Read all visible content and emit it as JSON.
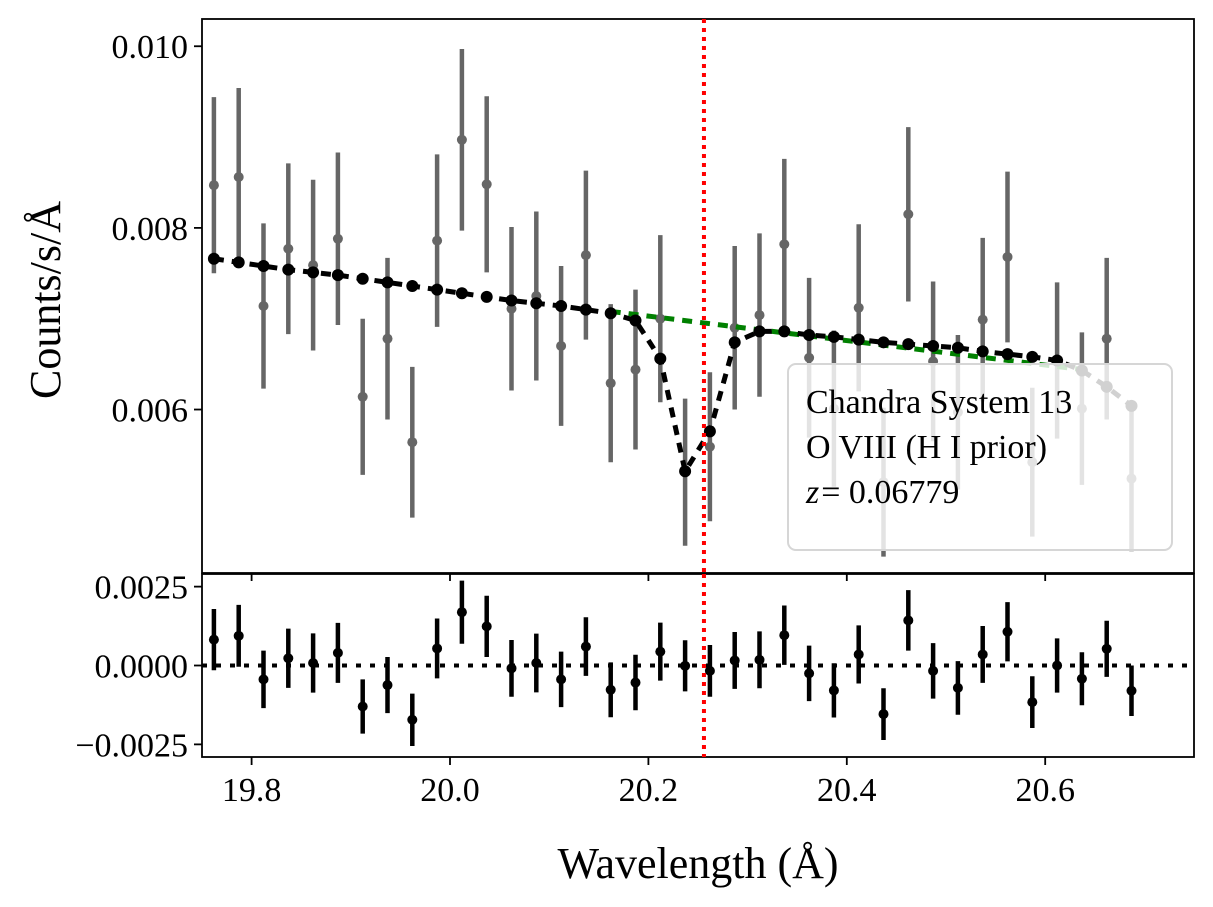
{
  "chart_data": {
    "type": "scatter",
    "xlabel": "Wavelength (Å)",
    "ylabel": "Counts/s/Å",
    "xlim": [
      19.75,
      20.75
    ],
    "x_ticks": [
      "19.8",
      "20.0",
      "20.2",
      "20.4",
      "20.6"
    ],
    "x_tick_values": [
      19.8,
      20.0,
      20.2,
      20.4,
      20.6
    ],
    "line_wavelength": 20.256,
    "colors": {
      "data": "#666666",
      "model": "#000000",
      "continuum": "#008000",
      "line_marker": "#ff0000",
      "residual": "#000000"
    },
    "panels": {
      "main": {
        "ylim": [
          0.0042,
          0.0103
        ],
        "y_ticks": [
          "0.006",
          "0.008",
          "0.010"
        ],
        "y_tick_values": [
          0.006,
          0.008,
          0.01
        ],
        "data": {
          "x": [
            19.762,
            19.787,
            19.812,
            19.837,
            19.862,
            19.887,
            19.912,
            19.937,
            19.962,
            19.987,
            20.012,
            20.037,
            20.062,
            20.087,
            20.112,
            20.137,
            20.162,
            20.187,
            20.212,
            20.237,
            20.262,
            20.287,
            20.312,
            20.337,
            20.362,
            20.387,
            20.412,
            20.437,
            20.462,
            20.487,
            20.512,
            20.537,
            20.562,
            20.587,
            20.612,
            20.637,
            20.662,
            20.687
          ],
          "y": [
            0.00847,
            0.00856,
            0.00714,
            0.00777,
            0.00759,
            0.00788,
            0.00614,
            0.00678,
            0.00564,
            0.00786,
            0.00897,
            0.00848,
            0.00711,
            0.00725,
            0.0067,
            0.0077,
            0.00629,
            0.00644,
            0.007,
            0.00531,
            0.00559,
            0.0069,
            0.00704,
            0.00782,
            0.00657,
            0.00601,
            0.00712,
            0.0052,
            0.00815,
            0.00653,
            0.00597,
            0.00699,
            0.00768,
            0.00542,
            0.00654,
            0.00601,
            0.00678,
            0.00524
          ],
          "yerr": [
            0.00097,
            0.00098,
            0.00091,
            0.00094,
            0.00094,
            0.00095,
            0.00086,
            0.00089,
            0.00083,
            0.00095,
            0.001,
            0.00097,
            0.0009,
            0.00093,
            0.00088,
            0.00093,
            0.00087,
            0.00088,
            0.00092,
            0.00081,
            0.00082,
            0.0009,
            0.0009,
            0.00094,
            0.00088,
            0.00086,
            0.00092,
            0.00082,
            0.00096,
            0.00088,
            0.00085,
            0.0009,
            0.00094,
            0.00082,
            0.00086,
            0.00084,
            0.00089,
            0.0008
          ]
        },
        "model": {
          "x": [
            19.762,
            19.787,
            19.812,
            19.837,
            19.862,
            19.887,
            19.912,
            19.937,
            19.962,
            19.987,
            20.012,
            20.037,
            20.062,
            20.087,
            20.112,
            20.137,
            20.162,
            20.187,
            20.212,
            20.237,
            20.262,
            20.287,
            20.312,
            20.337,
            20.362,
            20.387,
            20.412,
            20.437,
            20.462,
            20.487,
            20.512,
            20.537,
            20.562,
            20.587,
            20.612,
            20.637,
            20.662,
            20.687
          ],
          "y": [
            0.00766,
            0.00762,
            0.00758,
            0.00754,
            0.00751,
            0.00748,
            0.00744,
            0.0074,
            0.00736,
            0.00732,
            0.00728,
            0.00724,
            0.0072,
            0.00717,
            0.00714,
            0.0071,
            0.00706,
            0.00698,
            0.00656,
            0.00532,
            0.00576,
            0.00674,
            0.00686,
            0.00686,
            0.00682,
            0.0068,
            0.00677,
            0.00674,
            0.00672,
            0.0067,
            0.00668,
            0.00664,
            0.00661,
            0.00658,
            0.00654,
            0.00643,
            0.00625,
            0.00604
          ]
        },
        "continuum": {
          "x": [
            20.162,
            20.637
          ],
          "y": [
            0.00708,
            0.00644
          ]
        },
        "legend": {
          "lines": [
            "Chandra System 13",
            "O VIII (H I prior)",
            "z = 0.06779"
          ],
          "z_symbol": "z",
          "z_value": "= 0.06779",
          "location": "lower-right"
        }
      },
      "residual": {
        "ylim": [
          -0.0029,
          0.0029
        ],
        "y_ticks": [
          "0.0025",
          "0.0000",
          "−0.0025"
        ],
        "y_tick_values": [
          0.0025,
          0.0,
          -0.0025
        ],
        "x": [
          19.762,
          19.787,
          19.812,
          19.837,
          19.862,
          19.887,
          19.912,
          19.937,
          19.962,
          19.987,
          20.012,
          20.037,
          20.062,
          20.087,
          20.112,
          20.137,
          20.162,
          20.187,
          20.212,
          20.237,
          20.262,
          20.287,
          20.312,
          20.337,
          20.362,
          20.387,
          20.412,
          20.437,
          20.462,
          20.487,
          20.512,
          20.537,
          20.562,
          20.587,
          20.612,
          20.637,
          20.662,
          20.687
        ],
        "y": [
          0.00082,
          0.00094,
          -0.00044,
          0.00023,
          8e-05,
          0.0004,
          -0.0013,
          -0.00062,
          -0.00172,
          0.00054,
          0.00169,
          0.00124,
          -9e-05,
          8e-05,
          -0.00044,
          0.0006,
          -0.00077,
          -0.00054,
          0.00044,
          -1e-05,
          -0.00017,
          0.00016,
          0.00018,
          0.00096,
          -0.00025,
          -0.00079,
          0.00035,
          -0.00154,
          0.00143,
          -0.00017,
          -0.00071,
          0.00035,
          0.00107,
          -0.00116,
          -0.0,
          -0.00042,
          0.00053,
          -0.0008
        ],
        "yerr": [
          0.00097,
          0.00098,
          0.00091,
          0.00094,
          0.00094,
          0.00095,
          0.00086,
          0.00089,
          0.00083,
          0.00095,
          0.001,
          0.00097,
          0.0009,
          0.00093,
          0.00088,
          0.00093,
          0.00087,
          0.00088,
          0.00092,
          0.00081,
          0.00082,
          0.0009,
          0.0009,
          0.00094,
          0.00088,
          0.00086,
          0.00092,
          0.00082,
          0.00096,
          0.00088,
          0.00085,
          0.0009,
          0.00094,
          0.00082,
          0.00086,
          0.00084,
          0.00089,
          0.0008
        ]
      }
    }
  }
}
